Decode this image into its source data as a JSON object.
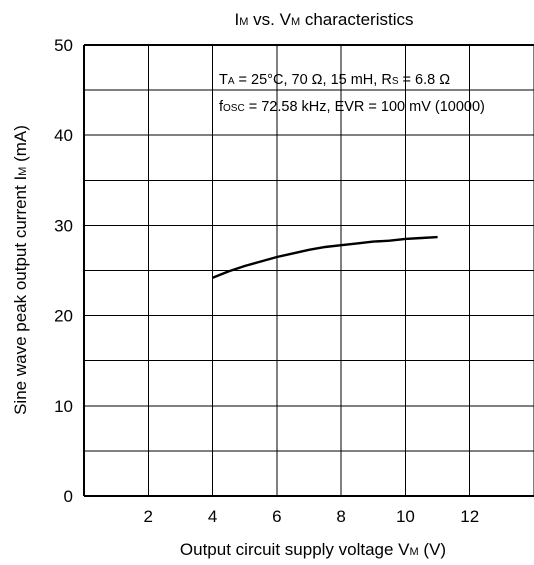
{
  "chart_data": {
    "type": "line",
    "title": {
      "main": "I",
      "sub": "M",
      "mid": " vs. V",
      "sub2": "M",
      "end": " characteristics"
    },
    "xlabel": {
      "main": "Output circuit supply voltage  V",
      "sub": "M",
      "end": "  (V)"
    },
    "ylabel": {
      "main": "Sine wave peak output current  I",
      "sub": "M",
      "end": "  (mA)"
    },
    "xlim": [
      0,
      14
    ],
    "ylim": [
      0,
      50
    ],
    "x_ticks": [
      2,
      4,
      6,
      8,
      10,
      12
    ],
    "y_ticks": [
      0,
      10,
      20,
      30,
      40,
      50
    ],
    "x_grid": [
      2,
      4,
      6,
      8,
      10,
      12,
      14
    ],
    "y_grid": [
      5,
      10,
      15,
      20,
      25,
      30,
      35,
      40,
      45,
      50
    ],
    "grid": true,
    "annotation": {
      "line1": [
        {
          "text": "T"
        },
        {
          "text": "A",
          "sub": true
        },
        {
          "text": " = 25°C, 70 Ω, 15 mH, R"
        },
        {
          "text": "S",
          "sub": true
        },
        {
          "text": " = 6.8 Ω"
        }
      ],
      "line2": [
        {
          "text": "f"
        },
        {
          "text": "OSC",
          "sub": true
        },
        {
          "text": " = 72.58 kHz, EVR = 100 mV (10000)"
        }
      ]
    },
    "series": [
      {
        "x": [
          4.0,
          4.5,
          5.0,
          5.5,
          6.0,
          6.5,
          7.0,
          7.5,
          8.0,
          8.5,
          9.0,
          9.5,
          10.0,
          10.5,
          11.0
        ],
        "y": [
          24.2,
          24.9,
          25.5,
          26.0,
          26.5,
          26.9,
          27.3,
          27.6,
          27.8,
          28.0,
          28.2,
          28.3,
          28.5,
          28.6,
          28.7
        ]
      }
    ]
  }
}
